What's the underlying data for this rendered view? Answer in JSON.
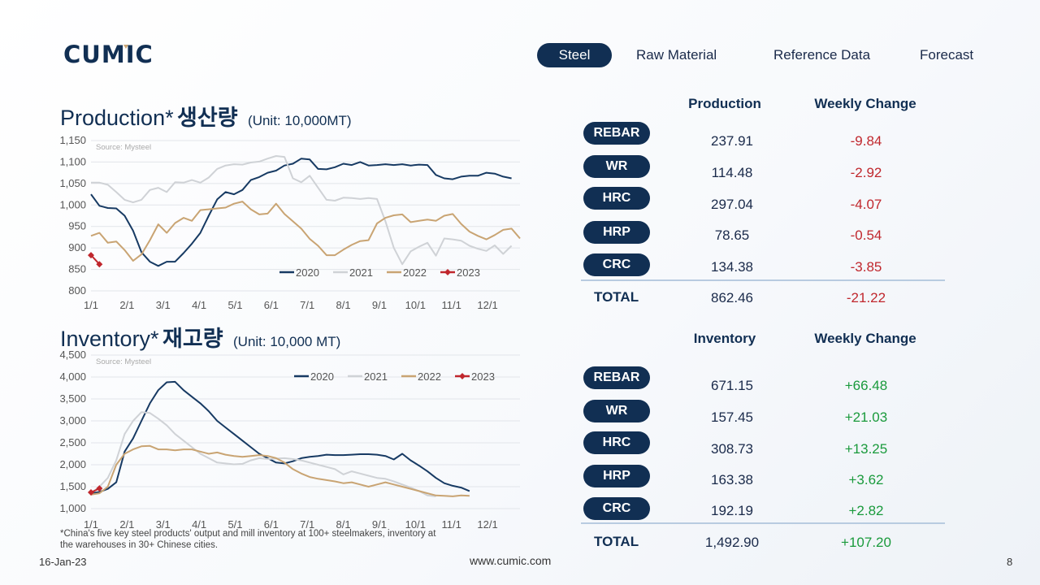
{
  "brand": {
    "name": "CUMIC"
  },
  "nav": {
    "tabs": [
      "Steel",
      "Raw Material",
      "Reference Data",
      "Forecast"
    ],
    "active": 0
  },
  "production": {
    "title": "Production*",
    "title_ko": "생산량",
    "unit": "(Unit: 10,000MT)",
    "col_value": "Production",
    "col_change": "Weekly Change",
    "rows": [
      {
        "label": "REBAR",
        "value": "237.91",
        "change": "-9.84"
      },
      {
        "label": "WR",
        "value": "114.48",
        "change": "-2.92"
      },
      {
        "label": "HRC",
        "value": "297.04",
        "change": "-4.07"
      },
      {
        "label": "HRP",
        "value": "78.65",
        "change": "-0.54"
      },
      {
        "label": "CRC",
        "value": "134.38",
        "change": "-3.85"
      }
    ],
    "total": {
      "label": "TOTAL",
      "value": "862.46",
      "change": "-21.22"
    }
  },
  "inventory": {
    "title": "Inventory*",
    "title_ko": "재고량",
    "unit": "(Unit: 10,000 MT)",
    "col_value": "Inventory",
    "col_change": "Weekly Change",
    "rows": [
      {
        "label": "REBAR",
        "value": "671.15",
        "change": "+66.48"
      },
      {
        "label": "WR",
        "value": "157.45",
        "change": "+21.03"
      },
      {
        "label": "HRC",
        "value": "308.73",
        "change": "+13.25"
      },
      {
        "label": "HRP",
        "value": "163.38",
        "change": "+3.62"
      },
      {
        "label": "CRC",
        "value": "192.19",
        "change": "+2.82"
      }
    ],
    "total": {
      "label": "TOTAL",
      "value": "1,492.90",
      "change": "+107.20"
    }
  },
  "chart_data": [
    {
      "type": "line",
      "title": "Production* 생산량 (Unit: 10,000MT)",
      "source": "Source: Mysteel",
      "x_ticks": [
        "1/1",
        "2/1",
        "3/1",
        "4/1",
        "5/1",
        "6/1",
        "7/1",
        "8/1",
        "9/1",
        "10/1",
        "11/1",
        "12/1"
      ],
      "ylim": [
        800,
        1150
      ],
      "y_ticks": [
        800,
        850,
        900,
        950,
        1000,
        1050,
        1100,
        1150
      ],
      "y_tick_labels": [
        "800",
        "850",
        "900",
        "950",
        "1,000",
        "1,050",
        "1,100",
        "1,150"
      ],
      "grid": true,
      "legend": "bottom-right",
      "series": [
        {
          "name": "2020",
          "color": "#173a63",
          "values": [
            1025,
            998,
            993,
            992,
            975,
            940,
            890,
            868,
            858,
            868,
            868,
            888,
            910,
            935,
            975,
            1013,
            1030,
            1025,
            1035,
            1058,
            1065,
            1075,
            1080,
            1092,
            1096,
            1108,
            1106,
            1084,
            1083,
            1088,
            1096,
            1093,
            1100,
            1092,
            1093,
            1095,
            1093,
            1095,
            1092,
            1094,
            1093,
            1070,
            1062,
            1060,
            1066,
            1068,
            1068,
            1075,
            1073,
            1066,
            1062
          ]
        },
        {
          "name": "2021",
          "color": "#cfd2d6",
          "values": [
            1052,
            1052,
            1047,
            1030,
            1012,
            1006,
            1012,
            1035,
            1040,
            1030,
            1053,
            1052,
            1058,
            1052,
            1064,
            1084,
            1092,
            1095,
            1094,
            1099,
            1101,
            1108,
            1114,
            1112,
            1062,
            1053,
            1068,
            1040,
            1012,
            1010,
            1017,
            1016,
            1014,
            1016,
            1014,
            962,
            900,
            862,
            892,
            903,
            912,
            882,
            922,
            920,
            917,
            905,
            898,
            893,
            906,
            886,
            905
          ]
        },
        {
          "name": "2022",
          "color": "#c9a473",
          "values": [
            928,
            935,
            912,
            915,
            895,
            870,
            885,
            918,
            955,
            935,
            958,
            970,
            963,
            988,
            990,
            992,
            994,
            1003,
            1008,
            990,
            978,
            980,
            1003,
            979,
            962,
            945,
            921,
            905,
            883,
            883,
            896,
            907,
            916,
            918,
            957,
            970,
            976,
            978,
            960,
            963,
            966,
            963,
            975,
            979,
            956,
            938,
            928,
            920,
            930,
            942,
            945,
            922
          ]
        },
        {
          "name": "2023",
          "color": "#c0272d",
          "marker": true,
          "values": [
            883,
            862
          ]
        }
      ]
    },
    {
      "type": "line",
      "title": "Inventory* 재고량 (Unit: 10,000 MT)",
      "source": "Source: Mysteel",
      "x_ticks": [
        "1/1",
        "2/1",
        "3/1",
        "4/1",
        "5/1",
        "6/1",
        "7/1",
        "8/1",
        "9/1",
        "10/1",
        "11/1",
        "12/1"
      ],
      "ylim": [
        1000,
        4500
      ],
      "y_ticks": [
        1000,
        1500,
        2000,
        2500,
        3000,
        3500,
        4000,
        4500
      ],
      "y_tick_labels": [
        "1,000",
        "1,500",
        "2,000",
        "2,500",
        "3,000",
        "3,500",
        "4,000",
        "4,500"
      ],
      "grid": true,
      "legend": "top-right",
      "series": [
        {
          "name": "2020",
          "color": "#173a63",
          "values": [
            1350,
            1380,
            1450,
            1600,
            2300,
            2600,
            3000,
            3400,
            3700,
            3880,
            3890,
            3700,
            3550,
            3400,
            3220,
            3000,
            2850,
            2700,
            2550,
            2400,
            2250,
            2150,
            2050,
            2030,
            2080,
            2150,
            2180,
            2200,
            2230,
            2220,
            2220,
            2230,
            2240,
            2240,
            2230,
            2200,
            2120,
            2250,
            2100,
            1980,
            1850,
            1700,
            1580,
            1520,
            1480,
            1400
          ]
        },
        {
          "name": "2021",
          "color": "#cfd2d6",
          "values": [
            1350,
            1500,
            1700,
            2100,
            2700,
            3000,
            3200,
            3180,
            3050,
            2900,
            2700,
            2550,
            2400,
            2250,
            2150,
            2050,
            2030,
            2010,
            2020,
            2100,
            2150,
            2130,
            2140,
            2150,
            2130,
            2100,
            2050,
            2000,
            1950,
            1900,
            1780,
            1850,
            1800,
            1750,
            1700,
            1680,
            1620,
            1550,
            1480,
            1400,
            1300,
            1280
          ]
        },
        {
          "name": "2022",
          "color": "#c9a473",
          "values": [
            1320,
            1350,
            1500,
            2000,
            2250,
            2350,
            2420,
            2430,
            2350,
            2350,
            2330,
            2350,
            2350,
            2300,
            2250,
            2280,
            2230,
            2200,
            2180,
            2200,
            2220,
            2200,
            2150,
            2050,
            1900,
            1800,
            1720,
            1680,
            1650,
            1620,
            1580,
            1600,
            1550,
            1500,
            1550,
            1600,
            1550,
            1500,
            1450,
            1400,
            1350,
            1300,
            1290,
            1280,
            1300,
            1290
          ]
        },
        {
          "name": "2023",
          "color": "#c0272d",
          "marker": true,
          "values": [
            1370,
            1460
          ]
        }
      ]
    }
  ],
  "footnote": "*China's five key steel products' output and mill inventory at 100+ steelmakers, inventory at the warehouses in 30+ Chinese cities.",
  "footer": {
    "date": "16-Jan-23",
    "url": "www.cumic.com",
    "page": "8"
  }
}
